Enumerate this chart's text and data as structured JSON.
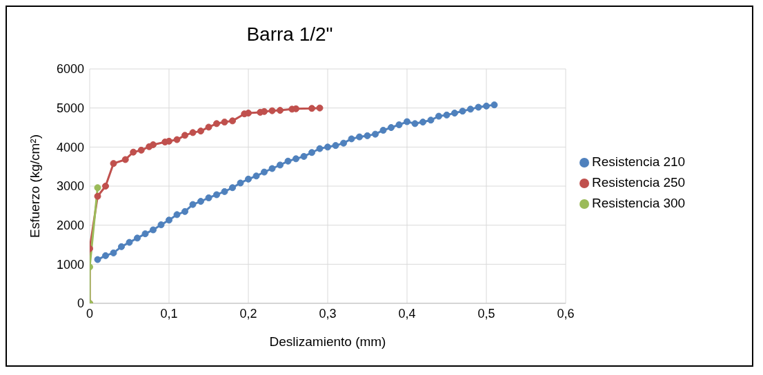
{
  "chart_data": {
    "type": "line",
    "title": "Barra 1/2\"",
    "xlabel": "Deslizamiento (mm)",
    "ylabel": "Esfuerzo (kg/cm²)",
    "xlim": [
      0,
      0.6
    ],
    "xticks": [
      {
        "value": 0,
        "label": "0"
      },
      {
        "value": 0.1,
        "label": "0,1"
      },
      {
        "value": 0.2,
        "label": "0,2"
      },
      {
        "value": 0.3,
        "label": "0,3"
      },
      {
        "value": 0.4,
        "label": "0,4"
      },
      {
        "value": 0.5,
        "label": "0,5"
      },
      {
        "value": 0.6,
        "label": "0,6"
      }
    ],
    "ylim": [
      0,
      6000
    ],
    "yticks": [
      0,
      1000,
      2000,
      3000,
      4000,
      5000,
      6000
    ],
    "grid": true,
    "legend": "right",
    "marker": "circle",
    "line_style": "solid",
    "series": [
      {
        "name": "Resistencia 210",
        "color": "#4f81bd",
        "x": [
          0.01,
          0.02,
          0.03,
          0.04,
          0.05,
          0.06,
          0.07,
          0.08,
          0.09,
          0.1,
          0.11,
          0.12,
          0.13,
          0.14,
          0.15,
          0.16,
          0.17,
          0.18,
          0.19,
          0.2,
          0.21,
          0.22,
          0.23,
          0.24,
          0.25,
          0.26,
          0.27,
          0.28,
          0.29,
          0.3,
          0.31,
          0.32,
          0.33,
          0.34,
          0.35,
          0.36,
          0.37,
          0.38,
          0.39,
          0.4,
          0.41,
          0.42,
          0.43,
          0.44,
          0.45,
          0.46,
          0.47,
          0.48,
          0.49,
          0.5,
          0.51
        ],
        "values": [
          1120,
          1220,
          1290,
          1450,
          1560,
          1670,
          1780,
          1880,
          2010,
          2130,
          2270,
          2350,
          2530,
          2610,
          2700,
          2780,
          2860,
          2960,
          3080,
          3180,
          3260,
          3360,
          3450,
          3540,
          3640,
          3700,
          3760,
          3860,
          3960,
          4000,
          4040,
          4100,
          4210,
          4260,
          4290,
          4330,
          4430,
          4500,
          4570,
          4650,
          4600,
          4640,
          4690,
          4790,
          4820,
          4870,
          4920,
          4970,
          5020,
          5050,
          5080
        ]
      },
      {
        "name": "Resistencia 250",
        "color": "#c0504d",
        "x": [
          0,
          0,
          0.01,
          0.02,
          0.03,
          0.045,
          0.055,
          0.065,
          0.075,
          0.08,
          0.095,
          0.1,
          0.11,
          0.12,
          0.13,
          0.14,
          0.15,
          0.16,
          0.17,
          0.18,
          0.195,
          0.2,
          0.215,
          0.22,
          0.23,
          0.24,
          0.255,
          0.26,
          0.28,
          0.29
        ],
        "values": [
          0,
          1400,
          2740,
          3000,
          3580,
          3680,
          3870,
          3920,
          4010,
          4060,
          4130,
          4150,
          4190,
          4300,
          4370,
          4410,
          4510,
          4600,
          4640,
          4670,
          4850,
          4870,
          4890,
          4910,
          4930,
          4940,
          4970,
          4980,
          4990,
          5000
        ]
      },
      {
        "name": "Resistencia 300",
        "color": "#9bbb59",
        "x": [
          0,
          0,
          0.01
        ],
        "values": [
          0,
          930,
          2960
        ]
      }
    ]
  }
}
